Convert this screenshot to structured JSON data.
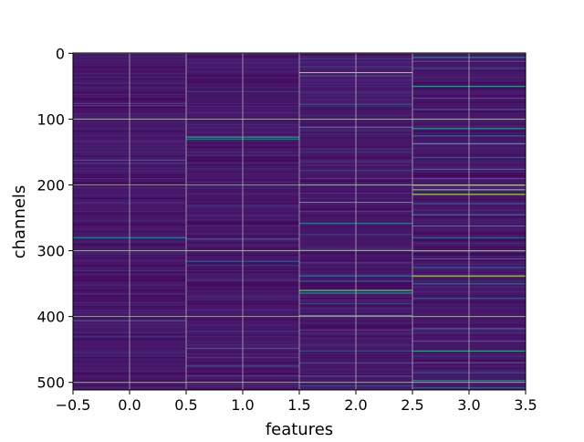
{
  "chart_data": {
    "type": "heatmap",
    "title": "",
    "xlabel": "features",
    "ylabel": "channels",
    "xlim": [
      -0.5,
      3.5
    ],
    "ylim": [
      511.5,
      -0.5
    ],
    "x_ticks": [
      -0.5,
      0.0,
      0.5,
      1.0,
      1.5,
      2.0,
      2.5,
      3.0,
      3.5
    ],
    "x_tick_labels": [
      "−0.5",
      "0.0",
      "0.5",
      "1.0",
      "1.5",
      "2.0",
      "2.5",
      "3.0",
      "3.5"
    ],
    "y_ticks": [
      0,
      100,
      200,
      300,
      400,
      500
    ],
    "y_tick_labels": [
      "0",
      "100",
      "200",
      "300",
      "400",
      "500"
    ],
    "grid": true,
    "colormap": "viridis",
    "background_color": "#46176a",
    "num_channels": 512,
    "num_features": 4,
    "features": [
      0,
      1,
      2,
      3
    ],
    "highlights": [
      {
        "feature": 0,
        "bands": [
          {
            "channel": 5,
            "value": 0.12
          },
          {
            "channel": 14,
            "value": 0.1
          },
          {
            "channel": 30,
            "value": 0.12
          },
          {
            "channel": 45,
            "value": 0.15
          },
          {
            "channel": 62,
            "value": 0.14
          },
          {
            "channel": 76,
            "value": 0.22
          },
          {
            "channel": 79,
            "value": 0.2
          },
          {
            "channel": 98,
            "value": 0.13
          },
          {
            "channel": 125,
            "value": 0.12
          },
          {
            "channel": 150,
            "value": 0.15
          },
          {
            "channel": 162,
            "value": 0.28
          },
          {
            "channel": 167,
            "value": 0.2
          },
          {
            "channel": 190,
            "value": 0.15
          },
          {
            "channel": 215,
            "value": 0.12
          },
          {
            "channel": 240,
            "value": 0.14
          },
          {
            "channel": 255,
            "value": 0.12
          },
          {
            "channel": 280,
            "value": 0.42
          },
          {
            "channel": 305,
            "value": 0.13
          },
          {
            "channel": 330,
            "value": 0.15
          },
          {
            "channel": 365,
            "value": 0.14
          },
          {
            "channel": 400,
            "value": 0.13
          },
          {
            "channel": 406,
            "value": 0.35
          },
          {
            "channel": 430,
            "value": 0.15
          },
          {
            "channel": 455,
            "value": 0.14
          },
          {
            "channel": 478,
            "value": 0.12
          },
          {
            "channel": 500,
            "value": 0.15
          }
        ]
      },
      {
        "feature": 1,
        "bands": [
          {
            "channel": 10,
            "value": 0.14
          },
          {
            "channel": 28,
            "value": 0.13
          },
          {
            "channel": 58,
            "value": 0.18
          },
          {
            "channel": 90,
            "value": 0.15
          },
          {
            "channel": 108,
            "value": 0.14
          },
          {
            "channel": 127,
            "value": 0.55
          },
          {
            "channel": 130,
            "value": 0.4
          },
          {
            "channel": 155,
            "value": 0.16
          },
          {
            "channel": 175,
            "value": 0.14
          },
          {
            "channel": 205,
            "value": 0.13
          },
          {
            "channel": 232,
            "value": 0.15
          },
          {
            "channel": 262,
            "value": 0.14
          },
          {
            "channel": 282,
            "value": 0.32
          },
          {
            "channel": 300,
            "value": 0.16
          },
          {
            "channel": 316,
            "value": 0.25
          },
          {
            "channel": 322,
            "value": 0.18
          },
          {
            "channel": 345,
            "value": 0.15
          },
          {
            "channel": 370,
            "value": 0.14
          },
          {
            "channel": 390,
            "value": 0.16
          },
          {
            "channel": 422,
            "value": 0.18
          },
          {
            "channel": 448,
            "value": 0.3
          },
          {
            "channel": 462,
            "value": 0.2
          },
          {
            "channel": 475,
            "value": 0.25
          },
          {
            "channel": 490,
            "value": 0.22
          },
          {
            "channel": 503,
            "value": 0.18
          }
        ]
      },
      {
        "feature": 2,
        "bands": [
          {
            "channel": 8,
            "value": 0.18
          },
          {
            "channel": 20,
            "value": 0.2
          },
          {
            "channel": 29,
            "value": 0.85
          },
          {
            "channel": 34,
            "value": 0.3
          },
          {
            "channel": 60,
            "value": 0.15
          },
          {
            "channel": 77,
            "value": 0.3
          },
          {
            "channel": 112,
            "value": 0.45
          },
          {
            "channel": 150,
            "value": 0.16
          },
          {
            "channel": 165,
            "value": 0.15
          },
          {
            "channel": 178,
            "value": 0.22
          },
          {
            "channel": 190,
            "value": 0.2
          },
          {
            "channel": 200,
            "value": 0.25
          },
          {
            "channel": 212,
            "value": 0.18
          },
          {
            "channel": 226,
            "value": 0.6
          },
          {
            "channel": 240,
            "value": 0.2
          },
          {
            "channel": 258,
            "value": 0.4
          },
          {
            "channel": 275,
            "value": 0.18
          },
          {
            "channel": 298,
            "value": 0.22
          },
          {
            "channel": 318,
            "value": 0.2
          },
          {
            "channel": 338,
            "value": 0.35
          },
          {
            "channel": 346,
            "value": 0.25
          },
          {
            "channel": 360,
            "value": 0.75
          },
          {
            "channel": 364,
            "value": 0.5
          },
          {
            "channel": 380,
            "value": 0.2
          },
          {
            "channel": 398,
            "value": 0.55
          },
          {
            "channel": 420,
            "value": 0.2
          },
          {
            "channel": 452,
            "value": 0.22
          },
          {
            "channel": 470,
            "value": 0.25
          },
          {
            "channel": 490,
            "value": 0.3
          },
          {
            "channel": 505,
            "value": 0.22
          }
        ]
      },
      {
        "feature": 3,
        "bands": [
          {
            "channel": 6,
            "value": 0.45
          },
          {
            "channel": 12,
            "value": 0.3
          },
          {
            "channel": 22,
            "value": 0.2
          },
          {
            "channel": 50,
            "value": 0.55
          },
          {
            "channel": 68,
            "value": 0.25
          },
          {
            "channel": 85,
            "value": 0.3
          },
          {
            "channel": 114,
            "value": 0.5
          },
          {
            "channel": 125,
            "value": 0.3
          },
          {
            "channel": 137,
            "value": 0.6
          },
          {
            "channel": 158,
            "value": 0.25
          },
          {
            "channel": 176,
            "value": 0.35
          },
          {
            "channel": 190,
            "value": 0.3
          },
          {
            "channel": 200,
            "value": 0.95
          },
          {
            "channel": 207,
            "value": 0.75
          },
          {
            "channel": 214,
            "value": 0.85
          },
          {
            "channel": 228,
            "value": 0.3
          },
          {
            "channel": 245,
            "value": 0.4
          },
          {
            "channel": 262,
            "value": 0.45
          },
          {
            "channel": 280,
            "value": 0.3
          },
          {
            "channel": 300,
            "value": 0.5
          },
          {
            "channel": 312,
            "value": 0.35
          },
          {
            "channel": 325,
            "value": 0.3
          },
          {
            "channel": 338,
            "value": 0.85
          },
          {
            "channel": 350,
            "value": 0.35
          },
          {
            "channel": 372,
            "value": 0.25
          },
          {
            "channel": 400,
            "value": 0.3
          },
          {
            "channel": 418,
            "value": 0.35
          },
          {
            "channel": 437,
            "value": 0.3
          },
          {
            "channel": 452,
            "value": 0.6
          },
          {
            "channel": 470,
            "value": 0.3
          },
          {
            "channel": 485,
            "value": 0.25
          },
          {
            "channel": 497,
            "value": 0.45
          },
          {
            "channel": 508,
            "value": 0.3
          }
        ]
      }
    ]
  }
}
